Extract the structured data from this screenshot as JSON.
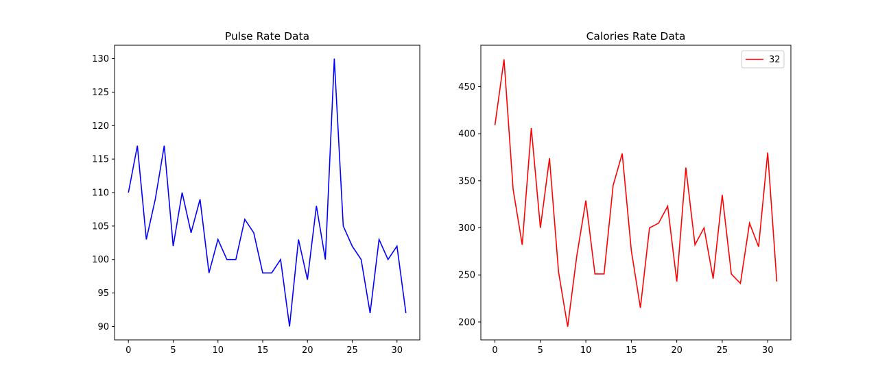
{
  "chart_data": [
    {
      "type": "line",
      "title": "Pulse Rate Data",
      "xlabel": "",
      "ylabel": "",
      "xlim": [
        -1.55,
        32.55
      ],
      "ylim": [
        88,
        132
      ],
      "xticks": [
        0,
        5,
        10,
        15,
        20,
        25,
        30
      ],
      "yticks": [
        90,
        95,
        100,
        105,
        110,
        115,
        120,
        125,
        130
      ],
      "grid": false,
      "series": [
        {
          "color": "#0000ff",
          "x": [
            0,
            1,
            2,
            3,
            4,
            5,
            6,
            7,
            8,
            9,
            10,
            11,
            12,
            13,
            14,
            15,
            16,
            17,
            18,
            19,
            20,
            21,
            22,
            23,
            24,
            25,
            26,
            27,
            28,
            29,
            30,
            31
          ],
          "values": [
            110,
            117,
            103,
            109,
            117,
            102,
            110,
            104,
            109,
            98,
            103,
            100,
            100,
            106,
            104,
            98,
            98,
            100,
            90,
            103,
            97,
            108,
            100,
            130,
            105,
            102,
            100,
            92,
            103,
            100,
            102,
            92
          ]
        }
      ]
    },
    {
      "type": "line",
      "title": "Calories Rate Data",
      "xlabel": "",
      "ylabel": "",
      "xlim": [
        -1.55,
        32.55
      ],
      "ylim": [
        181,
        494
      ],
      "xticks": [
        0,
        5,
        10,
        15,
        20,
        25,
        30
      ],
      "yticks": [
        200,
        250,
        300,
        350,
        400,
        450
      ],
      "grid": false,
      "legend_position": "top-right",
      "series": [
        {
          "name": "32",
          "color": "#ff0000",
          "x": [
            0,
            1,
            2,
            3,
            4,
            5,
            6,
            7,
            8,
            9,
            10,
            11,
            12,
            13,
            14,
            15,
            16,
            17,
            18,
            19,
            20,
            21,
            22,
            23,
            24,
            25,
            26,
            27,
            28,
            29,
            30,
            31
          ],
          "values": [
            409,
            479,
            341,
            282,
            406,
            300,
            374,
            253,
            195,
            270,
            329,
            251,
            251,
            345,
            379,
            276,
            215,
            300,
            305,
            323,
            243,
            364,
            282,
            300,
            246,
            335,
            251,
            241,
            305,
            280,
            380,
            243
          ]
        }
      ]
    }
  ]
}
